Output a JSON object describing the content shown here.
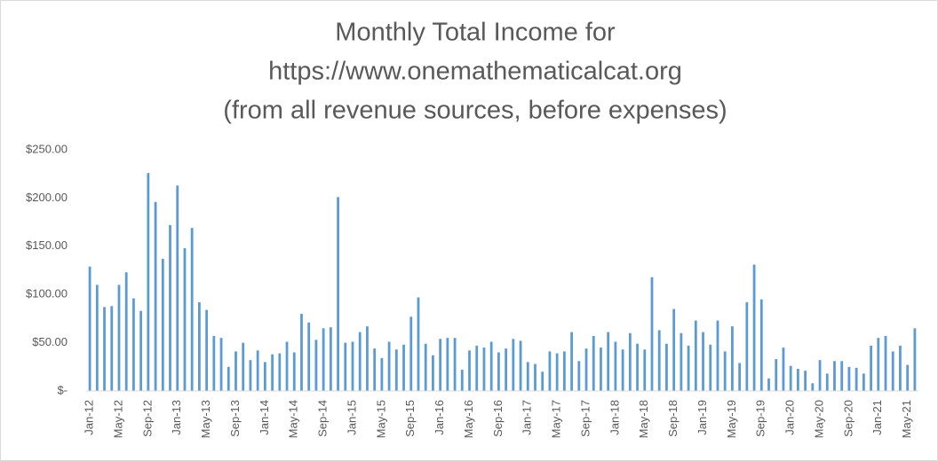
{
  "chart_data": {
    "type": "bar",
    "title": [
      "Monthly Total Income for",
      "https://www.onemathematicalcat.org",
      "(from all revenue sources, before expenses)"
    ],
    "categories": [
      "Jan-12",
      null,
      null,
      null,
      "May-12",
      null,
      null,
      null,
      "Sep-12",
      null,
      null,
      null,
      "Jan-13",
      null,
      null,
      null,
      "May-13",
      null,
      null,
      null,
      "Sep-13",
      null,
      null,
      null,
      "Jan-14",
      null,
      null,
      null,
      "May-14",
      null,
      null,
      null,
      "Sep-14",
      null,
      null,
      null,
      "Jan-15",
      null,
      null,
      null,
      "May-15",
      null,
      null,
      null,
      "Sep-15",
      null,
      null,
      null,
      "Jan-16",
      null,
      null,
      null,
      "May-16",
      null,
      null,
      null,
      "Sep-16",
      null,
      null,
      null,
      "Jan-17",
      null,
      null,
      null,
      "May-17",
      null,
      null,
      null,
      "Sep-17",
      null,
      null,
      null,
      "Jan-18",
      null,
      null,
      null,
      "May-18",
      null,
      null,
      null,
      "Sep-18",
      null,
      null,
      null,
      "Jan-19",
      null,
      null,
      null,
      "May-19",
      null,
      null,
      null,
      "Sep-19",
      null,
      null,
      null,
      "Jan-20",
      null,
      null,
      null,
      "May-20",
      null,
      null,
      null,
      "Sep-20",
      null,
      null,
      null,
      "Jan-21",
      null,
      null,
      null,
      "May-21",
      null
    ],
    "values": [
      129,
      110,
      87,
      88,
      110,
      123,
      96,
      83,
      226,
      196,
      137,
      172,
      213,
      148,
      169,
      92,
      84,
      57,
      55,
      25,
      41,
      50,
      32,
      42,
      30,
      38,
      39,
      51,
      40,
      80,
      71,
      53,
      65,
      66,
      201,
      50,
      51,
      61,
      67,
      44,
      34,
      51,
      43,
      48,
      77,
      97,
      49,
      37,
      54,
      55,
      55,
      22,
      42,
      47,
      45,
      51,
      40,
      44,
      54,
      52,
      30,
      28,
      20,
      41,
      39,
      41,
      61,
      31,
      44,
      57,
      45,
      61,
      51,
      43,
      60,
      49,
      43,
      118,
      63,
      49,
      85,
      60,
      47,
      73,
      61,
      48,
      73,
      41,
      67,
      29,
      92,
      131,
      95,
      13,
      33,
      45,
      26,
      23,
      21,
      8,
      32,
      18,
      31,
      31,
      25,
      24,
      18,
      47,
      55,
      57,
      41,
      47,
      27,
      65
    ],
    "color": "#5b9bd5",
    "ylim": [
      0,
      250
    ],
    "yticks": [
      {
        "value": 0,
        "label": "$-"
      },
      {
        "value": 50,
        "label": "$50.00"
      },
      {
        "value": 100,
        "label": "$100.00"
      },
      {
        "value": 150,
        "label": "$150.00"
      },
      {
        "value": 200,
        "label": "$200.00"
      },
      {
        "value": 250,
        "label": "$250.00"
      }
    ],
    "grid": false
  }
}
